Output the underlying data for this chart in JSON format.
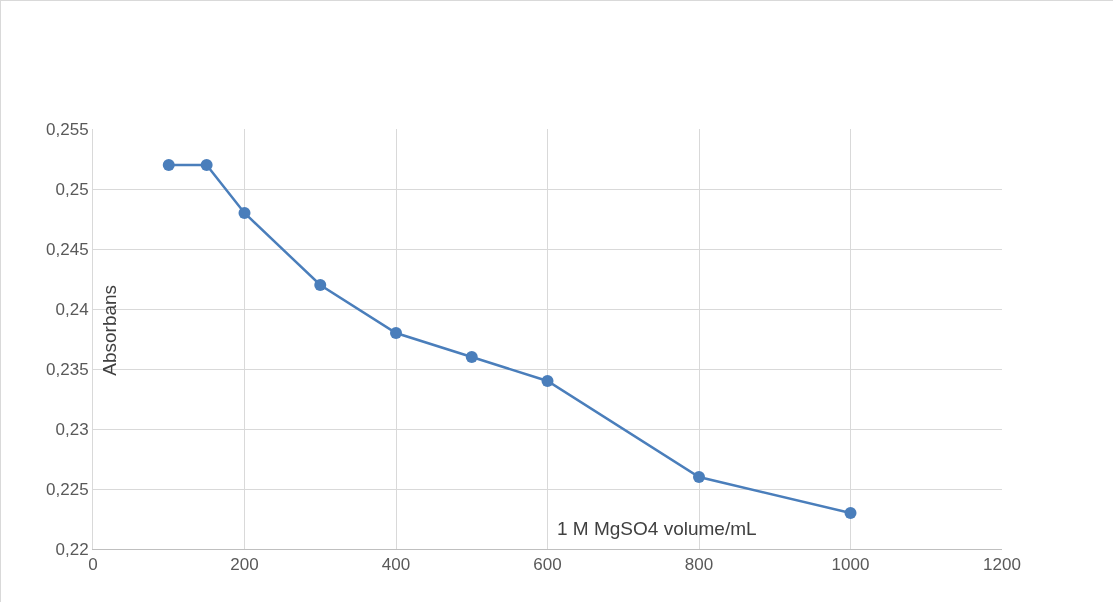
{
  "chart_data": {
    "type": "line",
    "xlabel": "1 M MgSO4 volume/mL",
    "ylabel": "Absorbans",
    "x": [
      100,
      150,
      200,
      300,
      400,
      500,
      600,
      800,
      1000
    ],
    "series": [
      {
        "color": "#4a7ebb",
        "values": [
          0.252,
          0.252,
          0.248,
          0.242,
          0.238,
          0.236,
          0.234,
          0.226,
          0.223
        ]
      }
    ],
    "xlim": [
      0,
      1200
    ],
    "xticks": [
      0,
      200,
      400,
      600,
      800,
      1000,
      1200
    ],
    "ylim": [
      0.22,
      0.255
    ],
    "yticks": [
      {
        "value": 0.22,
        "label": "0,22"
      },
      {
        "value": 0.225,
        "label": "0,225"
      },
      {
        "value": 0.23,
        "label": "0,23"
      },
      {
        "value": 0.235,
        "label": "0,235"
      },
      {
        "value": 0.24,
        "label": "0,24"
      },
      {
        "value": 0.245,
        "label": "0,245"
      },
      {
        "value": 0.25,
        "label": "0,25"
      },
      {
        "value": 0.255,
        "label": "0,255"
      }
    ],
    "grid": true,
    "marker": "circle",
    "line_style": "solid"
  }
}
